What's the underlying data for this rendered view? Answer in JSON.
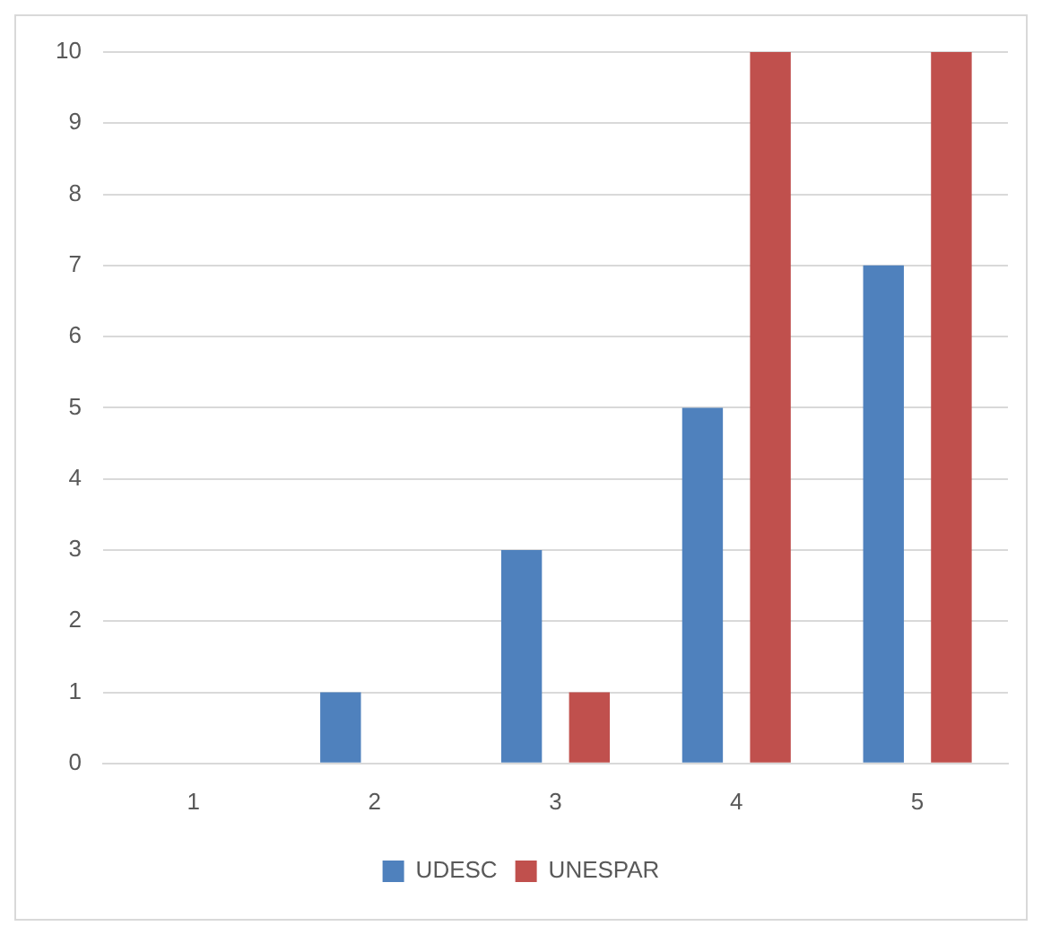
{
  "chart_data": {
    "type": "bar",
    "categories": [
      "1",
      "2",
      "3",
      "4",
      "5"
    ],
    "series": [
      {
        "name": "UDESC",
        "color": "#4f81bd",
        "values": [
          0,
          1,
          3,
          5,
          7
        ]
      },
      {
        "name": "UNESPAR",
        "color": "#c0504d",
        "values": [
          0,
          0,
          1,
          10,
          10
        ]
      }
    ],
    "ylim": [
      0,
      10
    ],
    "yticks": [
      0,
      1,
      2,
      3,
      4,
      5,
      6,
      7,
      8,
      9,
      10
    ],
    "grid": "y",
    "legend": "bottom"
  }
}
